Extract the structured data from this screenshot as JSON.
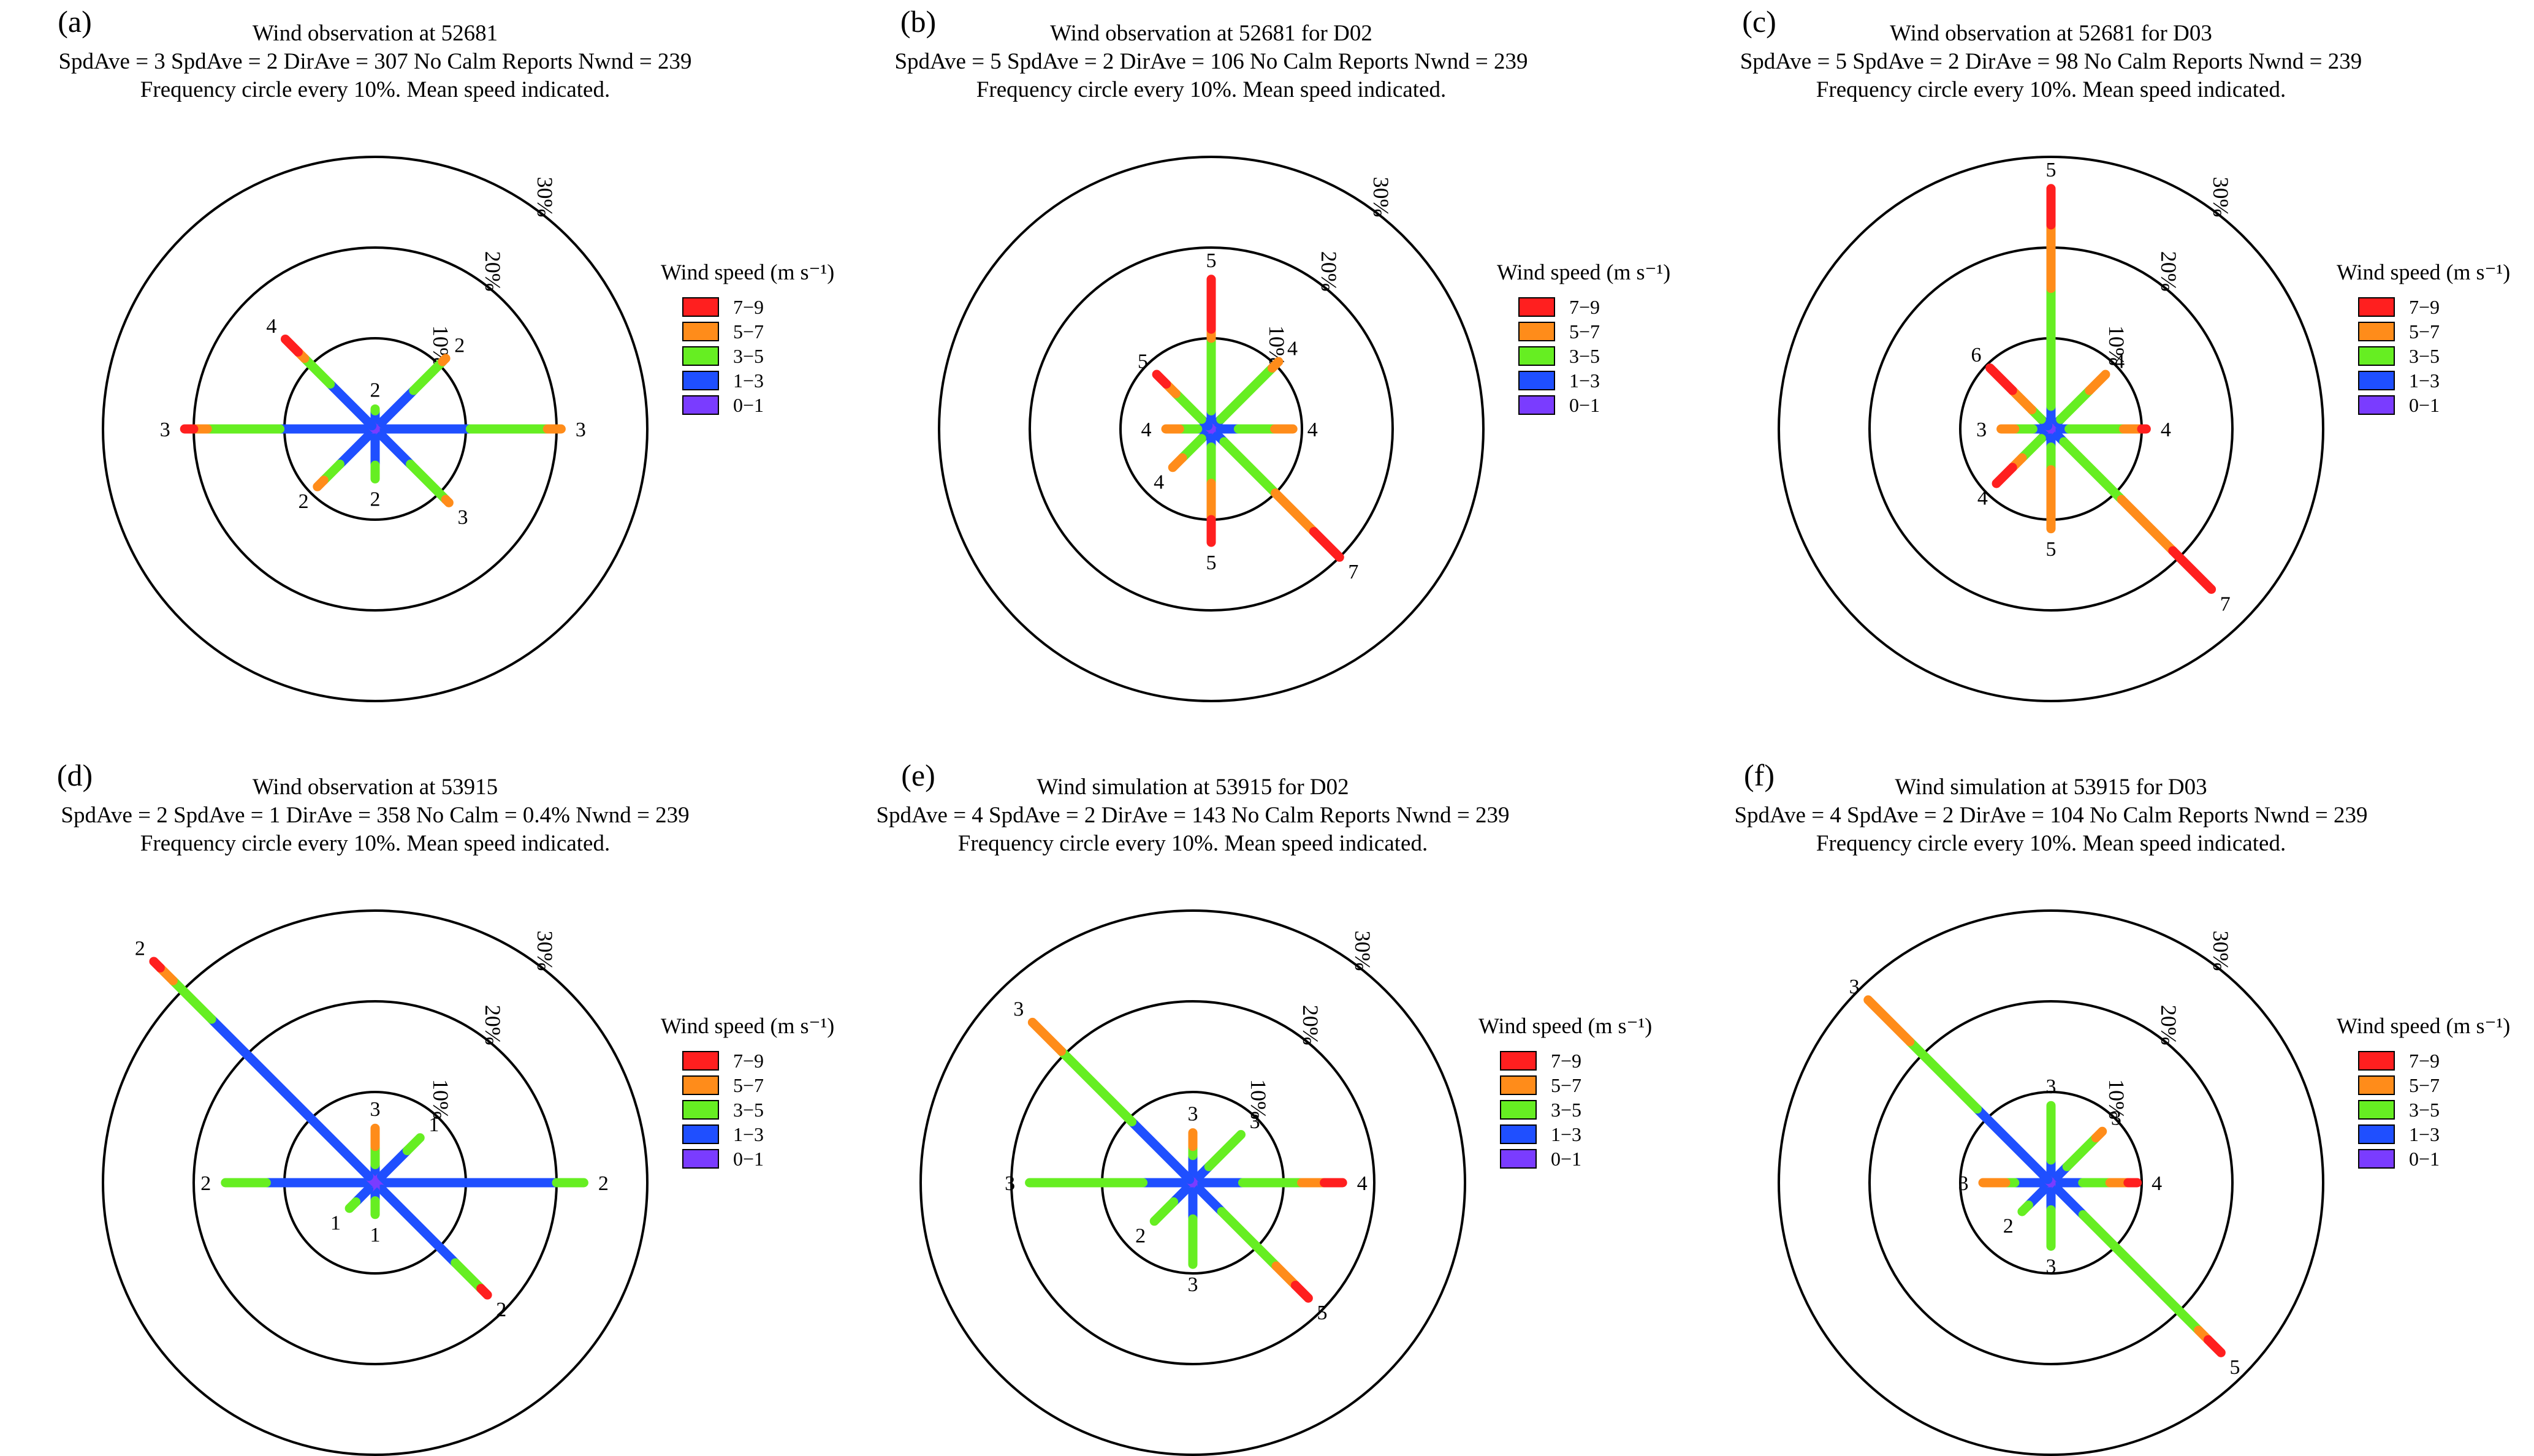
{
  "legend": {
    "title": "Wind speed (m s⁻¹)",
    "bins": [
      {
        "label": "7−9",
        "color": "#ff1f1f"
      },
      {
        "label": "5−7",
        "color": "#ff8c1a"
      },
      {
        "label": "3−5",
        "color": "#66ee22"
      },
      {
        "label": "1−3",
        "color": "#1f4fff"
      },
      {
        "label": "0−1",
        "color": "#7a3cff"
      }
    ]
  },
  "chart_data": [
    {
      "type": "wind-rose",
      "tag": "(a)",
      "title": [
        "Wind observation at 52681",
        "SpdAve = 3 SpdAve = 2 DirAve = 307 No Calm Reports Nwnd = 239",
        "Frequency circle every 10%. Mean speed indicated."
      ],
      "rings": [
        "10%",
        "20%",
        "30%"
      ],
      "rmax": 30,
      "directions": [
        {
          "dir": "N",
          "label": "2",
          "segments": [
            0.5,
            1.5,
            0.2,
            0,
            0
          ]
        },
        {
          "dir": "NE",
          "label": "2",
          "segments": [
            0.5,
            5.5,
            4.5,
            0.5,
            0
          ]
        },
        {
          "dir": "E",
          "label": "3",
          "segments": [
            0.5,
            10.0,
            8.5,
            1.5,
            0
          ]
        },
        {
          "dir": "SE",
          "label": "3",
          "segments": [
            0.5,
            5.0,
            5.5,
            0.5,
            0
          ]
        },
        {
          "dir": "S",
          "label": "2",
          "segments": [
            0.5,
            3.5,
            1.5,
            0,
            0
          ]
        },
        {
          "dir": "SW",
          "label": "2",
          "segments": [
            0.5,
            5.0,
            2.5,
            1.0,
            0
          ]
        },
        {
          "dir": "W",
          "label": "3",
          "segments": [
            0.5,
            10.0,
            8.0,
            1.5,
            1.0
          ]
        },
        {
          "dir": "NW",
          "label": "4",
          "segments": [
            0.5,
            6.5,
            4.0,
            1.0,
            2.0
          ]
        }
      ]
    },
    {
      "type": "wind-rose",
      "tag": "(b)",
      "title": [
        "Wind observation at 52681 for D02",
        "SpdAve = 5 SpdAve = 2 DirAve = 106 No Calm Reports Nwnd = 239",
        "Frequency circle every 10%. Mean speed indicated."
      ],
      "rings": [
        "10%",
        "20%",
        "30%"
      ],
      "rmax": 30,
      "directions": [
        {
          "dir": "N",
          "label": "5",
          "segments": [
            0.5,
            1.5,
            8.0,
            1.0,
            5.5
          ]
        },
        {
          "dir": "NE",
          "label": "4",
          "segments": [
            0.5,
            1.0,
            8.0,
            1.0,
            0
          ]
        },
        {
          "dir": "E",
          "label": "4",
          "segments": [
            0.5,
            2.5,
            4.0,
            2.0,
            0
          ]
        },
        {
          "dir": "SE",
          "label": "7",
          "segments": [
            0.5,
            1.5,
            8.0,
            6.0,
            4.0
          ]
        },
        {
          "dir": "S",
          "label": "5",
          "segments": [
            0.5,
            1.5,
            4.0,
            4.0,
            2.5
          ]
        },
        {
          "dir": "SW",
          "label": "4",
          "segments": [
            0.5,
            1.0,
            3.0,
            1.5,
            0
          ]
        },
        {
          "dir": "W",
          "label": "4",
          "segments": [
            0.5,
            1.0,
            2.0,
            1.5,
            0
          ]
        },
        {
          "dir": "NW",
          "label": "5",
          "segments": [
            0.5,
            1.0,
            4.0,
            1.5,
            1.5
          ]
        }
      ]
    },
    {
      "type": "wind-rose",
      "tag": "(c)",
      "title": [
        "Wind observation at 52681 for D03",
        "SpdAve = 5 SpdAve = 2 DirAve = 98 No Calm Reports Nwnd = 239",
        "Frequency circle every 10%. Mean speed indicated."
      ],
      "rings": [
        "10%",
        "20%",
        "30%"
      ],
      "rmax": 30,
      "directions": [
        {
          "dir": "N",
          "label": "5",
          "segments": [
            0.5,
            2.0,
            13.0,
            7.0,
            4.0
          ]
        },
        {
          "dir": "NE",
          "label": "4",
          "segments": [
            0.5,
            1.0,
            4.5,
            2.5,
            0
          ]
        },
        {
          "dir": "E",
          "label": "4",
          "segments": [
            0.5,
            1.5,
            6.0,
            2.0,
            0.5
          ]
        },
        {
          "dir": "SE",
          "label": "7",
          "segments": [
            0.5,
            1.5,
            9.0,
            8.0,
            6.0
          ]
        },
        {
          "dir": "S",
          "label": "5",
          "segments": [
            0.5,
            1.5,
            2.5,
            6.5,
            0
          ]
        },
        {
          "dir": "SW",
          "label": "4",
          "segments": [
            0.5,
            1.0,
            3.0,
            1.5,
            2.5
          ]
        },
        {
          "dir": "W",
          "label": "3",
          "segments": [
            0.5,
            1.5,
            2.0,
            1.5,
            0
          ]
        },
        {
          "dir": "NW",
          "label": "6",
          "segments": [
            0.5,
            1.0,
            1.5,
            3.0,
            3.5
          ]
        }
      ]
    },
    {
      "type": "wind-rose",
      "tag": "(d)",
      "title": [
        "Wind observation at 53915",
        "SpdAve = 2 SpdAve = 1 DirAve = 358 No Calm = 0.4%  Nwnd = 239",
        "Frequency circle every 10%. Mean speed indicated."
      ],
      "rings": [
        "10%",
        "20%",
        "30%"
      ],
      "rmax": 30,
      "directions": [
        {
          "dir": "N",
          "label": "3",
          "segments": [
            1.0,
            1.0,
            2.0,
            2.0,
            0
          ]
        },
        {
          "dir": "NE",
          "label": "1",
          "segments": [
            1.0,
            4.0,
            2.0,
            0,
            0
          ]
        },
        {
          "dir": "E",
          "label": "2",
          "segments": [
            0.5,
            19.5,
            3.0,
            0,
            0
          ]
        },
        {
          "dir": "SE",
          "label": "2",
          "segments": [
            1.0,
            11.5,
            4.0,
            0,
            1.0
          ]
        },
        {
          "dir": "S",
          "label": "1",
          "segments": [
            1.0,
            1.0,
            1.5,
            0,
            0
          ]
        },
        {
          "dir": "SW",
          "label": "1",
          "segments": [
            1.0,
            2.0,
            1.0,
            0,
            0
          ]
        },
        {
          "dir": "W",
          "label": "2",
          "segments": [
            0.5,
            11.5,
            4.5,
            0,
            0
          ]
        },
        {
          "dir": "NW",
          "label": "2",
          "segments": [
            1.0,
            24.5,
            6.0,
            2.0,
            1.0
          ]
        }
      ]
    },
    {
      "type": "wind-rose",
      "tag": "(e)",
      "title": [
        "Wind simulation at 53915 for D02",
        "SpdAve = 4 SpdAve = 2 DirAve = 143 No Calm Reports Nwnd = 239",
        "Frequency circle every 10%. Mean speed indicated."
      ],
      "rings": [
        "10%",
        "20%",
        "30%"
      ],
      "rmax": 30,
      "directions": [
        {
          "dir": "N",
          "label": "3",
          "segments": [
            0.5,
            2.5,
            1.0,
            1.5,
            0
          ]
        },
        {
          "dir": "NE",
          "label": "3",
          "segments": [
            0.5,
            2.0,
            5.0,
            0,
            0
          ]
        },
        {
          "dir": "E",
          "label": "4",
          "segments": [
            0.5,
            5.0,
            6.5,
            2.5,
            2.0
          ]
        },
        {
          "dir": "SE",
          "label": "5",
          "segments": [
            0.5,
            4.0,
            8.5,
            3.0,
            2.0
          ]
        },
        {
          "dir": "S",
          "label": "3",
          "segments": [
            0.5,
            3.5,
            5.0,
            0,
            0
          ]
        },
        {
          "dir": "SW",
          "label": "2",
          "segments": [
            0.5,
            2.5,
            3.0,
            0,
            0
          ]
        },
        {
          "dir": "W",
          "label": "3",
          "segments": [
            0.5,
            5.0,
            12.5,
            0,
            0
          ]
        },
        {
          "dir": "NW",
          "label": "3",
          "segments": [
            0.5,
            9.0,
            11.0,
            4.5,
            0
          ]
        }
      ]
    },
    {
      "type": "wind-rose",
      "tag": "(f)",
      "title": [
        "Wind simulation at 53915 for D03",
        "SpdAve = 4 SpdAve = 2 DirAve = 104 No Calm Reports Nwnd = 239",
        "Frequency circle every 10%. Mean speed indicated."
      ],
      "rings": [
        "10%",
        "20%",
        "30%"
      ],
      "rmax": 30,
      "directions": [
        {
          "dir": "N",
          "label": "3",
          "segments": [
            0.5,
            2.0,
            6.0,
            0,
            0
          ]
        },
        {
          "dir": "NE",
          "label": "3",
          "segments": [
            0.5,
            2.0,
            4.5,
            1.0,
            0
          ]
        },
        {
          "dir": "E",
          "label": "4",
          "segments": [
            0.5,
            3.0,
            3.0,
            2.0,
            1.0
          ]
        },
        {
          "dir": "SE",
          "label": "5",
          "segments": [
            0.5,
            4.5,
            18.0,
            1.5,
            2.0
          ]
        },
        {
          "dir": "S",
          "label": "3",
          "segments": [
            0.5,
            2.5,
            4.0,
            0,
            0
          ]
        },
        {
          "dir": "SW",
          "label": "2",
          "segments": [
            0.5,
            3.0,
            1.0,
            0,
            0
          ]
        },
        {
          "dir": "W",
          "label": "3",
          "segments": [
            0.5,
            3.5,
            1.0,
            2.5,
            0
          ]
        },
        {
          "dir": "NW",
          "label": "3",
          "segments": [
            0.5,
            11.0,
            10.5,
            6.5,
            0
          ]
        }
      ]
    }
  ]
}
